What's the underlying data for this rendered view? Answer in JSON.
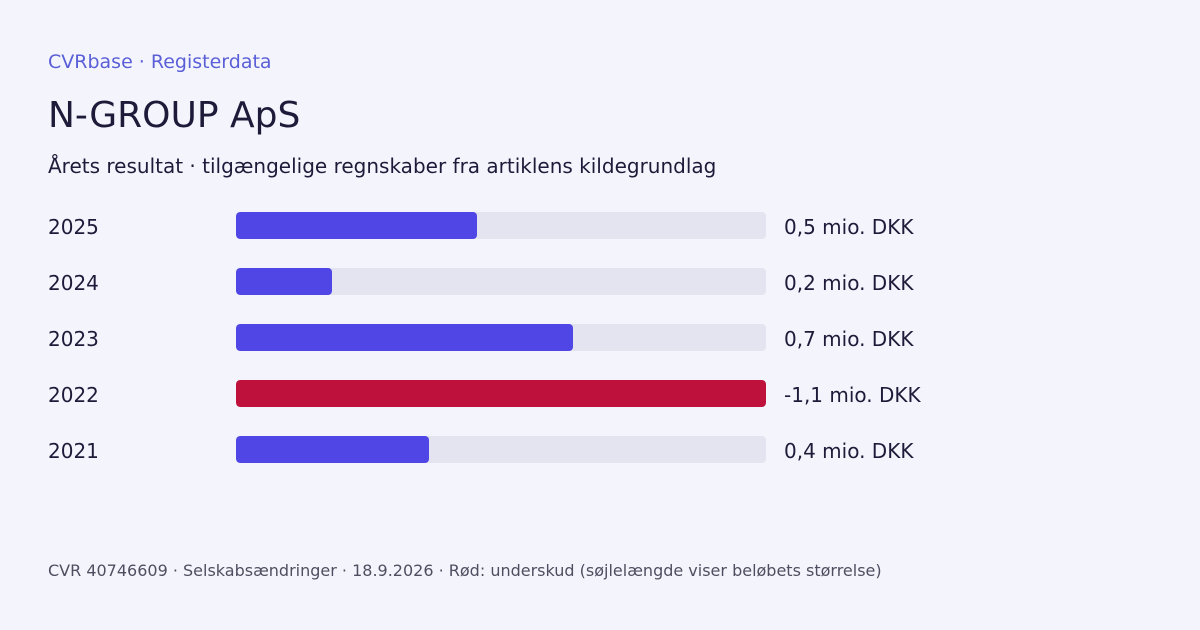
{
  "header": {
    "brand": "CVRbase · Registerdata",
    "title": "N-GROUP ApS",
    "subtitle": "Årets resultat · tilgængelige regnskaber fra artiklens kildegrundlag"
  },
  "chart_data": {
    "type": "bar",
    "orientation": "horizontal",
    "categories": [
      "2025",
      "2024",
      "2023",
      "2022",
      "2021"
    ],
    "values": [
      0.5,
      0.2,
      0.7,
      -1.1,
      0.4
    ],
    "value_labels": [
      "0,5 mio. DKK",
      "0,2 mio. DKK",
      "0,7 mio. DKK",
      "-1,1 mio. DKK",
      "0,4 mio. DKK"
    ],
    "bar_length_basis": "absolute value",
    "xlim": [
      0,
      1.1
    ],
    "grid": false,
    "legend": "none"
  },
  "footer": {
    "text": "CVR 40746609 · Selskabsændringer · 18.9.2026 · Rød: underskud (søjlelængde viser beløbets størrelse)"
  },
  "colors": {
    "background": "#f4f5fc",
    "brand": "#5a5fd8",
    "title": "#1e1b3a",
    "text": "#1e1b3a",
    "muted": "#4e4e60",
    "positive_bar": "#4f46e5",
    "negative_bar": "#be123c",
    "track": "#e3e4f0"
  }
}
